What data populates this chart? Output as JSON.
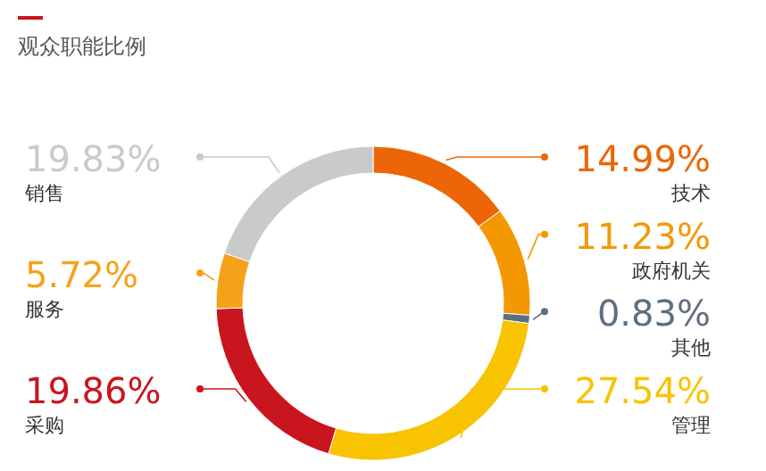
{
  "chart_data": {
    "type": "donut",
    "title": "观众职能比例",
    "categories": [
      "技术",
      "政府机关",
      "其他",
      "管理",
      "采购",
      "服务",
      "销售"
    ],
    "values": [
      14.99,
      11.23,
      0.83,
      27.54,
      19.86,
      5.72,
      19.83
    ],
    "value_labels": [
      "14.99%",
      "11.23%",
      "0.83%",
      "27.54%",
      "19.86%",
      "5.72%",
      "19.83%"
    ],
    "colors": [
      "#ec6608",
      "#f39800",
      "#5d6f82",
      "#f8c300",
      "#c9151e",
      "#f5a21b",
      "#c9cacb"
    ]
  }
}
